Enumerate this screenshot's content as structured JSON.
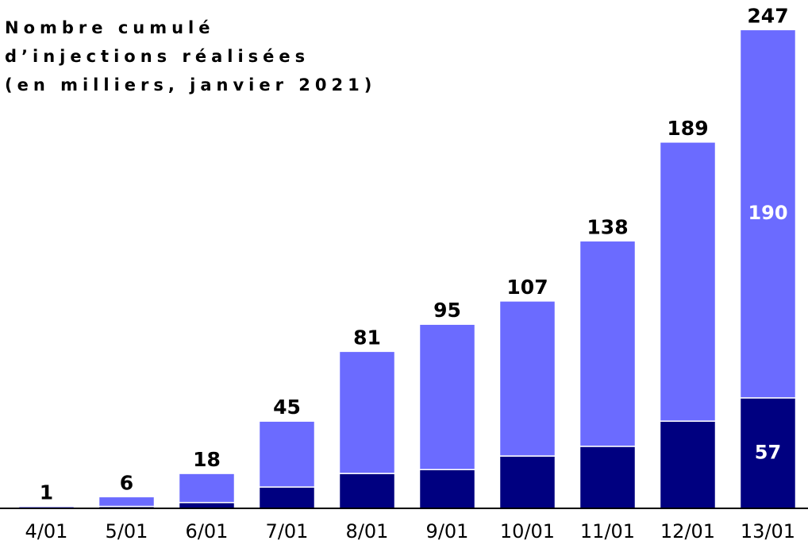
{
  "chart_data": {
    "type": "stacked_bar",
    "title": [
      "Nombre cumulé",
      "d’injections réalisées",
      "(en milliers, janvier 2021)"
    ],
    "categories": [
      "4/01",
      "5/01",
      "6/01",
      "7/01",
      "8/01",
      "9/01",
      "10/01",
      "11/01",
      "12/01",
      "13/01"
    ],
    "series": [
      {
        "color": "#000080",
        "values": [
          0,
          1,
          3,
          11,
          18,
          20,
          27,
          32,
          45,
          57
        ],
        "value_labels": [
          null,
          null,
          null,
          null,
          null,
          null,
          null,
          null,
          null,
          "57"
        ]
      },
      {
        "color": "#6b6bff",
        "values": [
          1,
          5,
          15,
          34,
          63,
          75,
          80,
          106,
          144,
          190
        ],
        "value_labels": [
          null,
          null,
          null,
          null,
          null,
          null,
          null,
          null,
          null,
          "190"
        ]
      }
    ],
    "totals": [
      1,
      6,
      18,
      45,
      81,
      95,
      107,
      138,
      189,
      247
    ],
    "ylim": [
      0,
      250
    ]
  }
}
